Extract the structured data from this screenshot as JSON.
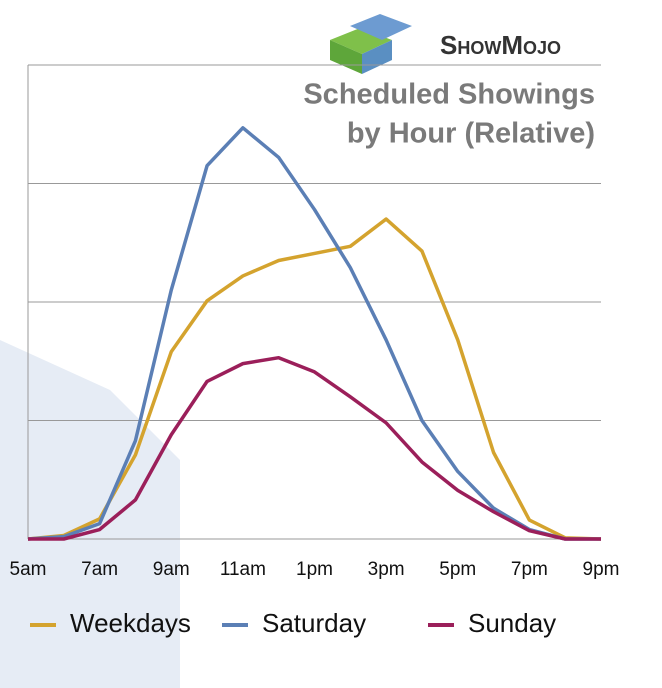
{
  "chart_data": {
    "type": "line",
    "logo_text": "ShowMojo",
    "title": [
      "Scheduled Showings",
      "by Hour (Relative)"
    ],
    "categories": [
      "5am",
      null,
      "7am",
      null,
      "9am",
      null,
      "11am",
      null,
      "1pm",
      null,
      "3pm",
      null,
      "5pm",
      null,
      "7pm",
      null,
      "9pm"
    ],
    "series": [
      {
        "name": "Weekdays",
        "color": "#d4a32e",
        "values": [
          0,
          0.03,
          0.17,
          0.71,
          1.58,
          2.01,
          2.22,
          2.35,
          2.41,
          2.47,
          2.7,
          2.43,
          1.68,
          0.73,
          0.16,
          0.01,
          0
        ]
      },
      {
        "name": "Saturday",
        "color": "#5b7fb5",
        "values": [
          0,
          0.02,
          0.13,
          0.83,
          2.1,
          3.15,
          3.47,
          3.22,
          2.78,
          2.29,
          1.68,
          1.0,
          0.57,
          0.26,
          0.08,
          0,
          0
        ]
      },
      {
        "name": "Sunday",
        "color": "#9b1f5a",
        "values": [
          0,
          0,
          0.08,
          0.33,
          0.88,
          1.33,
          1.48,
          1.53,
          1.41,
          1.2,
          0.98,
          0.65,
          0.41,
          0.23,
          0.07,
          0,
          0
        ]
      }
    ],
    "ylim": [
      0,
      4
    ],
    "yticks": [
      0,
      1,
      2,
      3,
      4
    ],
    "grid": true
  }
}
